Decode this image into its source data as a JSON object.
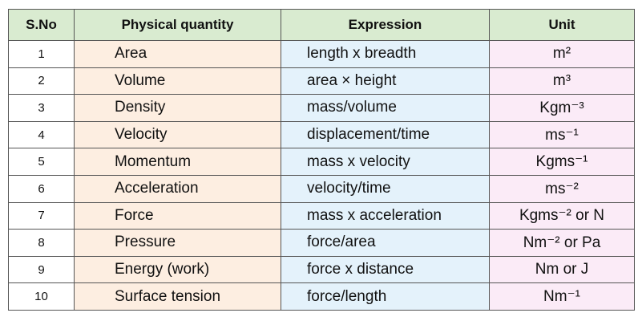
{
  "table": {
    "header": [
      "S.No",
      "Physical quantity",
      "Expression",
      "Unit"
    ],
    "rows": [
      [
        "1",
        "Area",
        "length x breadth",
        "m²"
      ],
      [
        "2",
        "Volume",
        "area × height",
        "m³"
      ],
      [
        "3",
        "Density",
        "mass/volume",
        "Kgm⁻³"
      ],
      [
        "4",
        "Velocity",
        "displacement/time",
        "ms⁻¹"
      ],
      [
        "5",
        "Momentum",
        "mass x velocity",
        "Kgms⁻¹"
      ],
      [
        "6",
        "Acceleration",
        "velocity/time",
        "ms⁻²"
      ],
      [
        "7",
        "Force",
        "mass x acceleration",
        "Kgms⁻² or N"
      ],
      [
        "8",
        "Pressure",
        "force/area",
        "Nm⁻² or Pa"
      ],
      [
        "9",
        "Energy (work)",
        "force x distance",
        "Nm or J"
      ],
      [
        "10",
        "Surface tension",
        "force/length",
        "Nm⁻¹"
      ]
    ]
  }
}
